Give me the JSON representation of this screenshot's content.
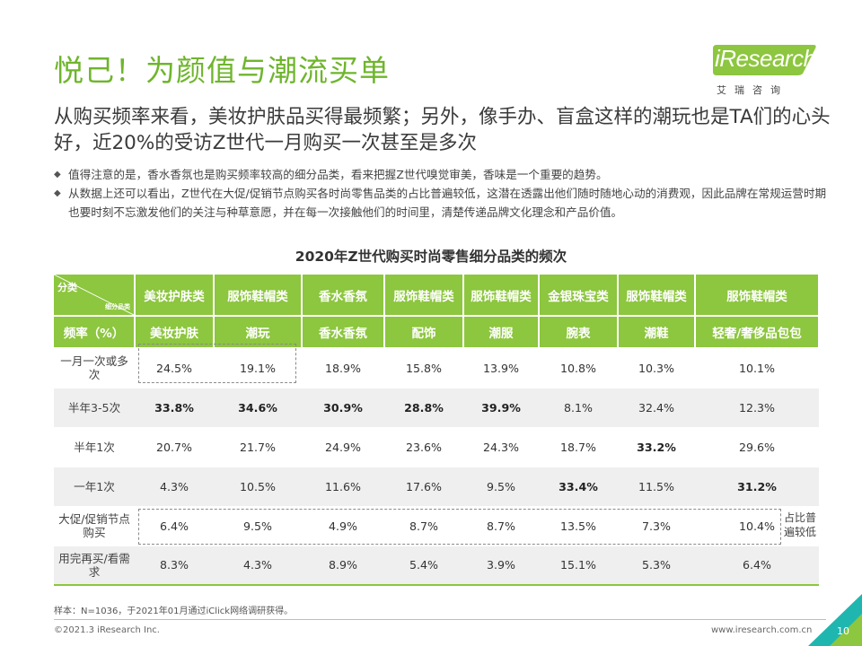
{
  "title": "悦己！为颜值与潮流买单",
  "logo": {
    "name": "iResearch",
    "cn": "艾瑞咨询",
    "badge_color": "#8dc63f"
  },
  "headline": "从购买频率来看，美妆护肤品买得最频繁；另外，像手办、盲盒这样的潮玩也是TA们的心头好，近20%的受访Z世代一月购买一次甚至是多次",
  "bullets": [
    "值得注意的是，香水香氛也是购买频率较高的细分品类，看来把握Z世代嗅觉审美，香味是一个重要的趋势。",
    "从数据上还可以看出，Z世代在大促/促销节点购买各时尚零售品类的占比普遍较低，这潜在透露出他们随时随地心动的消费观，因此品牌在常规运营时期也要时刻不忘激发他们的关注与种草意愿，并在每一次接触他们的时间里，清楚传递品牌文化理念和产品价值。"
  ],
  "table": {
    "title": "2020年Z世代购买时尚零售细分品类的频次",
    "corner_top": "分类",
    "corner_bottom": "细分品类",
    "categories": [
      "美妆护肤类",
      "服饰鞋帽类",
      "香水香氛",
      "服饰鞋帽类",
      "服饰鞋帽类",
      "金银珠宝类",
      "服饰鞋帽类",
      "服饰鞋帽类"
    ],
    "freq_label": "频率（%）",
    "subcategories": [
      "美妆护肤",
      "潮玩",
      "香水香氛",
      "配饰",
      "潮服",
      "腕表",
      "潮鞋",
      "轻奢/奢侈品包包"
    ],
    "rows": [
      {
        "label": "一月一次或多次",
        "values": [
          "24.5%",
          "19.1%",
          "18.9%",
          "15.8%",
          "13.9%",
          "10.8%",
          "10.3%",
          "10.1%"
        ],
        "bold": []
      },
      {
        "label": "半年3-5次",
        "values": [
          "33.8%",
          "34.6%",
          "30.9%",
          "28.8%",
          "39.9%",
          "8.1%",
          "32.4%",
          "12.3%"
        ],
        "bold": [
          0,
          1,
          2,
          3,
          4
        ]
      },
      {
        "label": "半年1次",
        "values": [
          "20.7%",
          "21.7%",
          "24.9%",
          "23.6%",
          "24.3%",
          "18.7%",
          "33.2%",
          "29.6%"
        ],
        "bold": [
          6
        ]
      },
      {
        "label": "一年1次",
        "values": [
          "4.3%",
          "10.5%",
          "11.6%",
          "17.6%",
          "9.5%",
          "33.4%",
          "11.5%",
          "31.2%"
        ],
        "bold": [
          5,
          7
        ]
      },
      {
        "label": "大促/促销节点购买",
        "values": [
          "6.4%",
          "9.5%",
          "4.9%",
          "8.7%",
          "8.7%",
          "13.5%",
          "7.3%",
          "10.4%"
        ],
        "bold": []
      },
      {
        "label": "用完再买/看需求",
        "values": [
          "8.3%",
          "4.3%",
          "8.9%",
          "5.4%",
          "3.9%",
          "15.1%",
          "5.3%",
          "6.4%"
        ],
        "bold": []
      }
    ],
    "note": "占比普遍较低"
  },
  "source": "样本：N=1036，于2021年01月通过iClick网络调研获得。",
  "footer": {
    "copyright": "©2021.3 iResearch Inc.",
    "website": "www.iresearch.com.cn",
    "page": "10"
  },
  "colors": {
    "accent": "#8dc63f",
    "title": "#6fb52c",
    "corner": "#1fb6b0"
  }
}
